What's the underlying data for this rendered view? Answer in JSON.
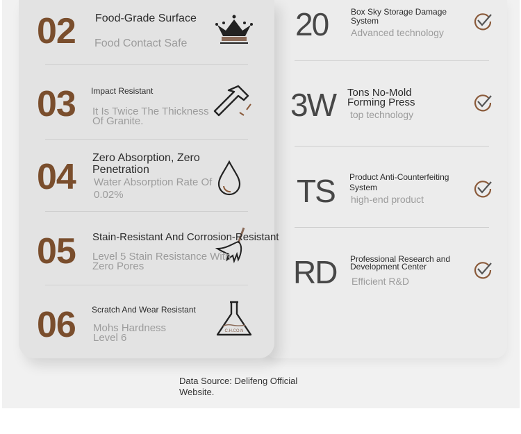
{
  "left_features": [
    {
      "number": "02",
      "title": "Food-Grade Surface",
      "subtitle": "Food Contact Safe",
      "icon": "crown-icon"
    },
    {
      "number": "03",
      "title": "Impact Resistant",
      "subtitle": "It Is Twice The Thickness Of Granite.",
      "icon": "hammer-icon"
    },
    {
      "number": "04",
      "title": "Zero Absorption, Zero Penetration",
      "subtitle": "Water Absorption Rate Of 0.02%",
      "icon": "water-drop-icon"
    },
    {
      "number": "05",
      "title": "Stain-Resistant And Corrosion-Resistant",
      "subtitle": "Level 5 Stain Resistance With Zero Pores",
      "icon": "broom-icon"
    },
    {
      "number": "06",
      "title": "Scratch And Wear Resistant",
      "subtitle": "Mohs Hardness Level 6",
      "icon": "flask-icon",
      "icon_label": "C.H.CO.N"
    }
  ],
  "right_features": [
    {
      "code": "20",
      "title": "Box Sky Storage Damage System",
      "subtitle": "Advanced technology",
      "icon": "check-circle-icon"
    },
    {
      "code": "3W",
      "title": "Tons No-Mold Forming Press",
      "subtitle": "top technology",
      "icon": "check-circle-icon"
    },
    {
      "code": "TS",
      "title": "Product Anti-Counterfeiting System",
      "subtitle": "high-end product",
      "icon": "check-circle-icon"
    },
    {
      "code": "RD",
      "title": "Professional Research and Development Center",
      "subtitle": "Efficient R&D",
      "icon": "check-circle-icon"
    }
  ],
  "caption": "Data Source: Delifeng Official Website.",
  "colors": {
    "accent": "#7a4e2d",
    "check": "#8a5a3a"
  }
}
